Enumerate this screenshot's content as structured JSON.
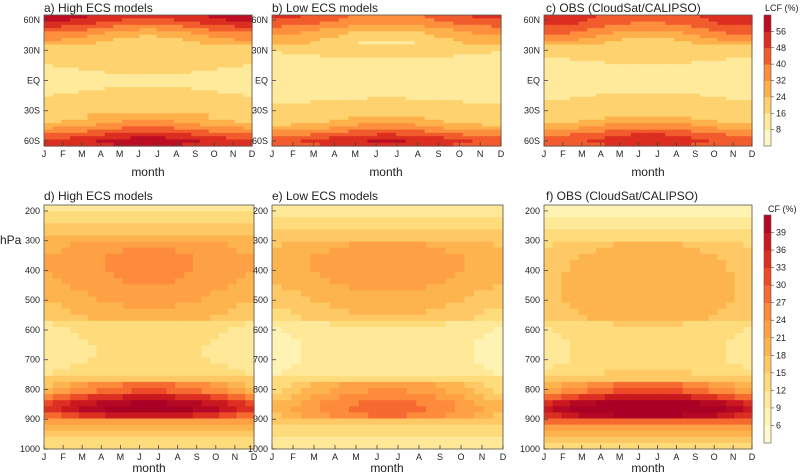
{
  "chart_data": {
    "type": "heatmap",
    "months": [
      "J",
      "F",
      "M",
      "A",
      "M",
      "J",
      "J",
      "A",
      "S",
      "O",
      "N",
      "D"
    ],
    "top_row": {
      "ylabel": "",
      "yticks": [
        "60N",
        "30N",
        "EQ",
        "30S",
        "60S"
      ],
      "y_values": [
        60,
        30,
        0,
        -30,
        -60
      ],
      "ylim": [
        -65,
        65
      ],
      "xlabel": "month",
      "colorbar": {
        "title": "LCF (%)",
        "ticks": [
          8,
          16,
          24,
          32,
          40,
          48,
          56
        ],
        "range": [
          0,
          64
        ]
      },
      "panels": [
        {
          "title": "a) High ECS models",
          "grid_note": "latitude x month, values in %"
        },
        {
          "title": "b) Low ECS models",
          "grid_note": "latitude x month, values in %"
        },
        {
          "title": "c) OBS (CloudSat/CALIPSO)",
          "grid_note": "latitude x month, values in %"
        }
      ],
      "lat_profile": {
        "lat": [
          65,
          58,
          52,
          46,
          40,
          34,
          28,
          20,
          10,
          0,
          -10,
          -20,
          -28,
          -36,
          -42,
          -48,
          -54,
          -60,
          -65
        ],
        "high": [
          56,
          50,
          40,
          32,
          26,
          22,
          19,
          17,
          15,
          14,
          15,
          17,
          20,
          24,
          30,
          38,
          48,
          56,
          52
        ],
        "low": [
          44,
          40,
          32,
          26,
          22,
          18,
          16,
          14,
          13,
          12,
          13,
          15,
          17,
          20,
          26,
          34,
          44,
          52,
          48
        ],
        "obs": [
          48,
          46,
          40,
          34,
          28,
          22,
          18,
          15,
          14,
          13,
          14,
          16,
          18,
          22,
          28,
          36,
          44,
          50,
          46
        ]
      }
    },
    "bottom_row": {
      "ylabel": "hPa",
      "yticks": [
        "200",
        "300",
        "400",
        "500",
        "600",
        "700",
        "800",
        "900",
        "1000"
      ],
      "y_values": [
        200,
        300,
        400,
        500,
        600,
        700,
        800,
        900,
        1000
      ],
      "ylim": [
        1000,
        180
      ],
      "xlabel": "month",
      "colorbar": {
        "title": "CF (%)",
        "ticks": [
          6,
          9,
          12,
          15,
          18,
          21,
          24,
          27,
          30,
          33,
          36,
          39
        ],
        "range": [
          3,
          42
        ]
      },
      "panels": [
        {
          "title": "d) High ECS models",
          "grid_note": "pressure x month, values in %"
        },
        {
          "title": "e) Low ECS models",
          "grid_note": "pressure x month, values in %"
        },
        {
          "title": "f) OBS (CloudSat/CALIPSO)",
          "grid_note": "pressure x month, values in %"
        }
      ],
      "pressure_profile": {
        "p": [
          180,
          200,
          250,
          300,
          350,
          400,
          450,
          500,
          550,
          600,
          650,
          700,
          750,
          800,
          830,
          860,
          880,
          920,
          960,
          1000
        ],
        "high": [
          10,
          12,
          16,
          19,
          21,
          21,
          20,
          18,
          16,
          14,
          13,
          13,
          15,
          19,
          28,
          36,
          30,
          20,
          14,
          12
        ],
        "low": [
          9,
          11,
          14,
          17,
          19,
          19,
          18,
          16,
          14,
          12,
          11,
          11,
          12,
          14,
          17,
          19,
          18,
          15,
          12,
          10
        ],
        "obs": [
          5,
          7,
          11,
          14,
          16,
          17,
          17,
          17,
          16,
          15,
          14,
          14,
          16,
          20,
          30,
          40,
          36,
          24,
          16,
          12
        ]
      }
    }
  }
}
